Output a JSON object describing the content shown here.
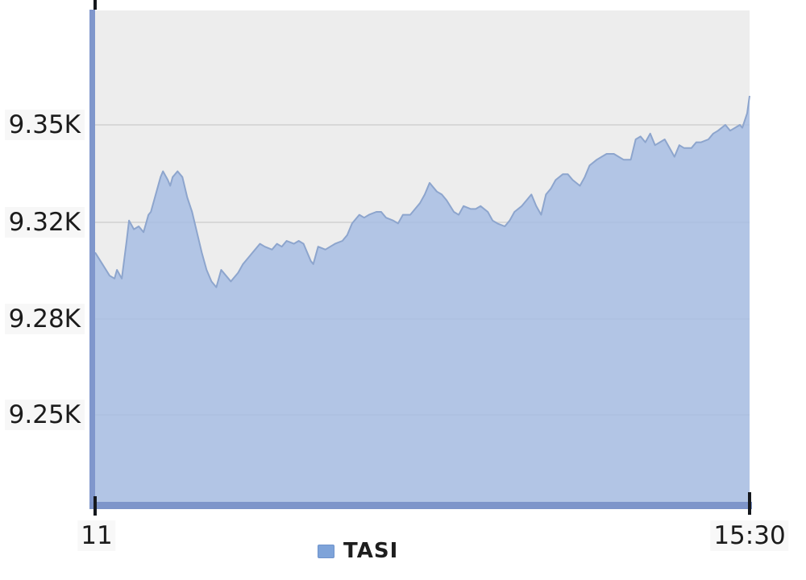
{
  "chart_data": {
    "type": "area",
    "title": "",
    "xlabel": "",
    "ylabel": "",
    "x_tick_labels": [
      "11",
      "15:30"
    ],
    "x_range": [
      "11:00",
      "15:30"
    ],
    "y_tick_labels": [
      "9.35K",
      "9.32K",
      "9.28K",
      "9.25K"
    ],
    "y_tick_values": [
      9350,
      9316.7,
      9283.3,
      9250
    ],
    "y_axis_implied_range": [
      9218,
      9389
    ],
    "grid": true,
    "legend": {
      "position": "bottom",
      "entries": [
        "TASI"
      ]
    },
    "series": [
      {
        "name": "TASI",
        "color": "#7ea3d9",
        "points": [
          [
            "11:00",
            9306
          ],
          [
            "11:03",
            9302
          ],
          [
            "11:06",
            9298
          ],
          [
            "11:08",
            9297
          ],
          [
            "11:09",
            9300
          ],
          [
            "11:11",
            9297
          ],
          [
            "11:13",
            9310
          ],
          [
            "11:14",
            9317
          ],
          [
            "11:16",
            9314
          ],
          [
            "11:18",
            9315
          ],
          [
            "11:20",
            9313
          ],
          [
            "11:22",
            9319
          ],
          [
            "11:23",
            9320
          ],
          [
            "11:25",
            9326
          ],
          [
            "11:27",
            9332
          ],
          [
            "11:28",
            9334
          ],
          [
            "11:30",
            9331
          ],
          [
            "11:31",
            9329
          ],
          [
            "11:32",
            9332
          ],
          [
            "11:34",
            9334
          ],
          [
            "11:36",
            9332
          ],
          [
            "11:38",
            9325
          ],
          [
            "11:40",
            9320
          ],
          [
            "11:42",
            9313
          ],
          [
            "11:44",
            9306
          ],
          [
            "11:46",
            9300
          ],
          [
            "11:48",
            9296
          ],
          [
            "11:50",
            9294
          ],
          [
            "11:52",
            9300
          ],
          [
            "11:54",
            9298
          ],
          [
            "11:56",
            9296
          ],
          [
            "11:59",
            9299
          ],
          [
            "12:01",
            9302
          ],
          [
            "12:03",
            9304
          ],
          [
            "12:05",
            9306
          ],
          [
            "12:08",
            9309
          ],
          [
            "12:10",
            9308
          ],
          [
            "12:13",
            9307
          ],
          [
            "12:15",
            9309
          ],
          [
            "12:17",
            9308
          ],
          [
            "12:19",
            9310
          ],
          [
            "12:22",
            9309
          ],
          [
            "12:24",
            9310
          ],
          [
            "12:26",
            9309
          ],
          [
            "12:29",
            9303
          ],
          [
            "12:30",
            9302
          ],
          [
            "12:32",
            9308
          ],
          [
            "12:35",
            9307
          ],
          [
            "12:37",
            9308
          ],
          [
            "12:39",
            9309
          ],
          [
            "12:42",
            9310
          ],
          [
            "12:44",
            9312
          ],
          [
            "12:46",
            9316
          ],
          [
            "12:49",
            9319
          ],
          [
            "12:51",
            9318
          ],
          [
            "12:53",
            9319
          ],
          [
            "12:56",
            9320
          ],
          [
            "12:58",
            9320
          ],
          [
            "13:00",
            9318
          ],
          [
            "13:03",
            9317
          ],
          [
            "13:05",
            9316
          ],
          [
            "13:07",
            9319
          ],
          [
            "13:10",
            9319
          ],
          [
            "13:12",
            9321
          ],
          [
            "13:14",
            9323
          ],
          [
            "13:16",
            9326
          ],
          [
            "13:18",
            9330
          ],
          [
            "13:21",
            9327
          ],
          [
            "13:23",
            9326
          ],
          [
            "13:25",
            9324
          ],
          [
            "13:28",
            9320
          ],
          [
            "13:30",
            9319
          ],
          [
            "13:32",
            9322
          ],
          [
            "13:35",
            9321
          ],
          [
            "13:37",
            9321
          ],
          [
            "13:39",
            9322
          ],
          [
            "13:42",
            9320
          ],
          [
            "13:44",
            9317
          ],
          [
            "13:46",
            9316
          ],
          [
            "13:49",
            9315
          ],
          [
            "13:51",
            9317
          ],
          [
            "13:53",
            9320
          ],
          [
            "13:56",
            9322
          ],
          [
            "13:58",
            9324
          ],
          [
            "14:00",
            9326
          ],
          [
            "14:02",
            9322
          ],
          [
            "14:04",
            9319
          ],
          [
            "14:06",
            9326
          ],
          [
            "14:08",
            9328
          ],
          [
            "14:10",
            9331
          ],
          [
            "14:13",
            9333
          ],
          [
            "14:15",
            9333
          ],
          [
            "14:17",
            9331
          ],
          [
            "14:20",
            9329
          ],
          [
            "14:22",
            9332
          ],
          [
            "14:24",
            9336
          ],
          [
            "14:27",
            9338
          ],
          [
            "14:29",
            9339
          ],
          [
            "14:31",
            9340
          ],
          [
            "14:34",
            9340
          ],
          [
            "14:36",
            9339
          ],
          [
            "14:38",
            9338
          ],
          [
            "14:41",
            9338
          ],
          [
            "14:43",
            9345
          ],
          [
            "14:45",
            9346
          ],
          [
            "14:47",
            9344
          ],
          [
            "14:49",
            9347
          ],
          [
            "14:51",
            9343
          ],
          [
            "14:53",
            9344
          ],
          [
            "14:55",
            9345
          ],
          [
            "14:57",
            9342
          ],
          [
            "14:59",
            9339
          ],
          [
            "15:01",
            9343
          ],
          [
            "15:03",
            9342
          ],
          [
            "15:06",
            9342
          ],
          [
            "15:08",
            9344
          ],
          [
            "15:10",
            9344
          ],
          [
            "15:13",
            9345
          ],
          [
            "15:15",
            9347
          ],
          [
            "15:17",
            9348
          ],
          [
            "15:20",
            9350
          ],
          [
            "15:22",
            9348
          ],
          [
            "15:24",
            9349
          ],
          [
            "15:26",
            9350
          ],
          [
            "15:27",
            9349
          ],
          [
            "15:29",
            9354
          ],
          [
            "15:30",
            9360
          ]
        ]
      }
    ]
  },
  "legend": {
    "label": "TASI"
  },
  "colors": {
    "area_fill": "#a7bde3",
    "area_fill_opacity": 0.85,
    "area_stroke": "#8da5cd",
    "axis_line": "#8097cc",
    "baseline": "#7d95ca",
    "plot_background": "#ededed",
    "gridline": "#d8d8d8",
    "tick": "#15181d",
    "label_text": "#1b1b1b",
    "legend_swatch": "#7ea3d9"
  }
}
